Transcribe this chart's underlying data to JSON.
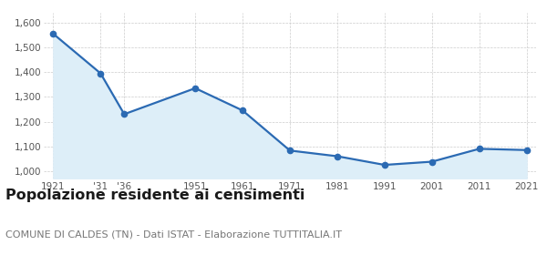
{
  "years": [
    1921,
    1931,
    1936,
    1951,
    1961,
    1971,
    1981,
    1991,
    2001,
    2011,
    2021
  ],
  "population": [
    1555,
    1395,
    1230,
    1335,
    1245,
    1083,
    1060,
    1025,
    1038,
    1090,
    1085
  ],
  "x_tick_labels": [
    "1921",
    "'31",
    "'36",
    "1951",
    "1961",
    "1971",
    "1981",
    "1991",
    "2001",
    "2011",
    "2021"
  ],
  "ylim": [
    970,
    1640
  ],
  "yticks": [
    1000,
    1100,
    1200,
    1300,
    1400,
    1500,
    1600
  ],
  "line_color": "#2b6ab3",
  "fill_color": "#ddeef8",
  "marker_size": 4.5,
  "line_width": 1.6,
  "title": "Popolazione residente ai censimenti",
  "subtitle": "COMUNE DI CALDES (TN) - Dati ISTAT - Elaborazione TUTTITALIA.IT",
  "title_fontsize": 11.5,
  "subtitle_fontsize": 8.0,
  "bg_color": "#ffffff",
  "grid_color": "#cccccc"
}
